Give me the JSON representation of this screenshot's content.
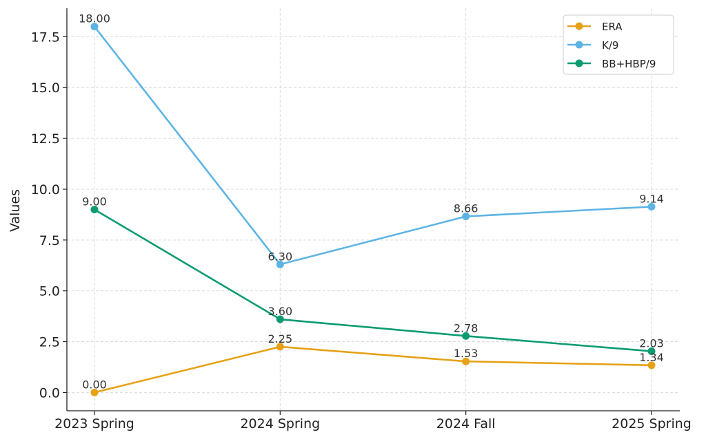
{
  "chart_data": {
    "type": "line",
    "categories": [
      "2023 Spring",
      "2024 Spring",
      "2024 Fall",
      "2025 Spring"
    ],
    "series": [
      {
        "name": "ERA",
        "color": "#E6A117",
        "values": [
          0.0,
          2.25,
          1.53,
          1.34
        ],
        "labels": [
          "0.00",
          "2.25",
          "1.53",
          "1.34"
        ]
      },
      {
        "name": "K/9",
        "color": "#5DB4E4",
        "values": [
          18.0,
          6.3,
          8.66,
          9.14
        ],
        "labels": [
          "18.00",
          "6.30",
          "8.66",
          "9.14"
        ]
      },
      {
        "name": "BB+HBP/9",
        "color": "#0A9B72",
        "values": [
          9.0,
          3.6,
          2.78,
          2.03
        ],
        "labels": [
          "9.00",
          "3.60",
          "2.78",
          "2.03"
        ]
      }
    ],
    "title": "",
    "xlabel": "",
    "ylabel": "Values",
    "ylim": [
      -0.9,
      18.9
    ],
    "yticks": [
      0.0,
      2.5,
      5.0,
      7.5,
      10.0,
      12.5,
      15.0,
      17.5
    ],
    "ytick_labels": [
      "0.0",
      "2.5",
      "5.0",
      "7.5",
      "10.0",
      "12.5",
      "15.0",
      "17.5"
    ],
    "grid": true,
    "legend_position": "top-right"
  }
}
